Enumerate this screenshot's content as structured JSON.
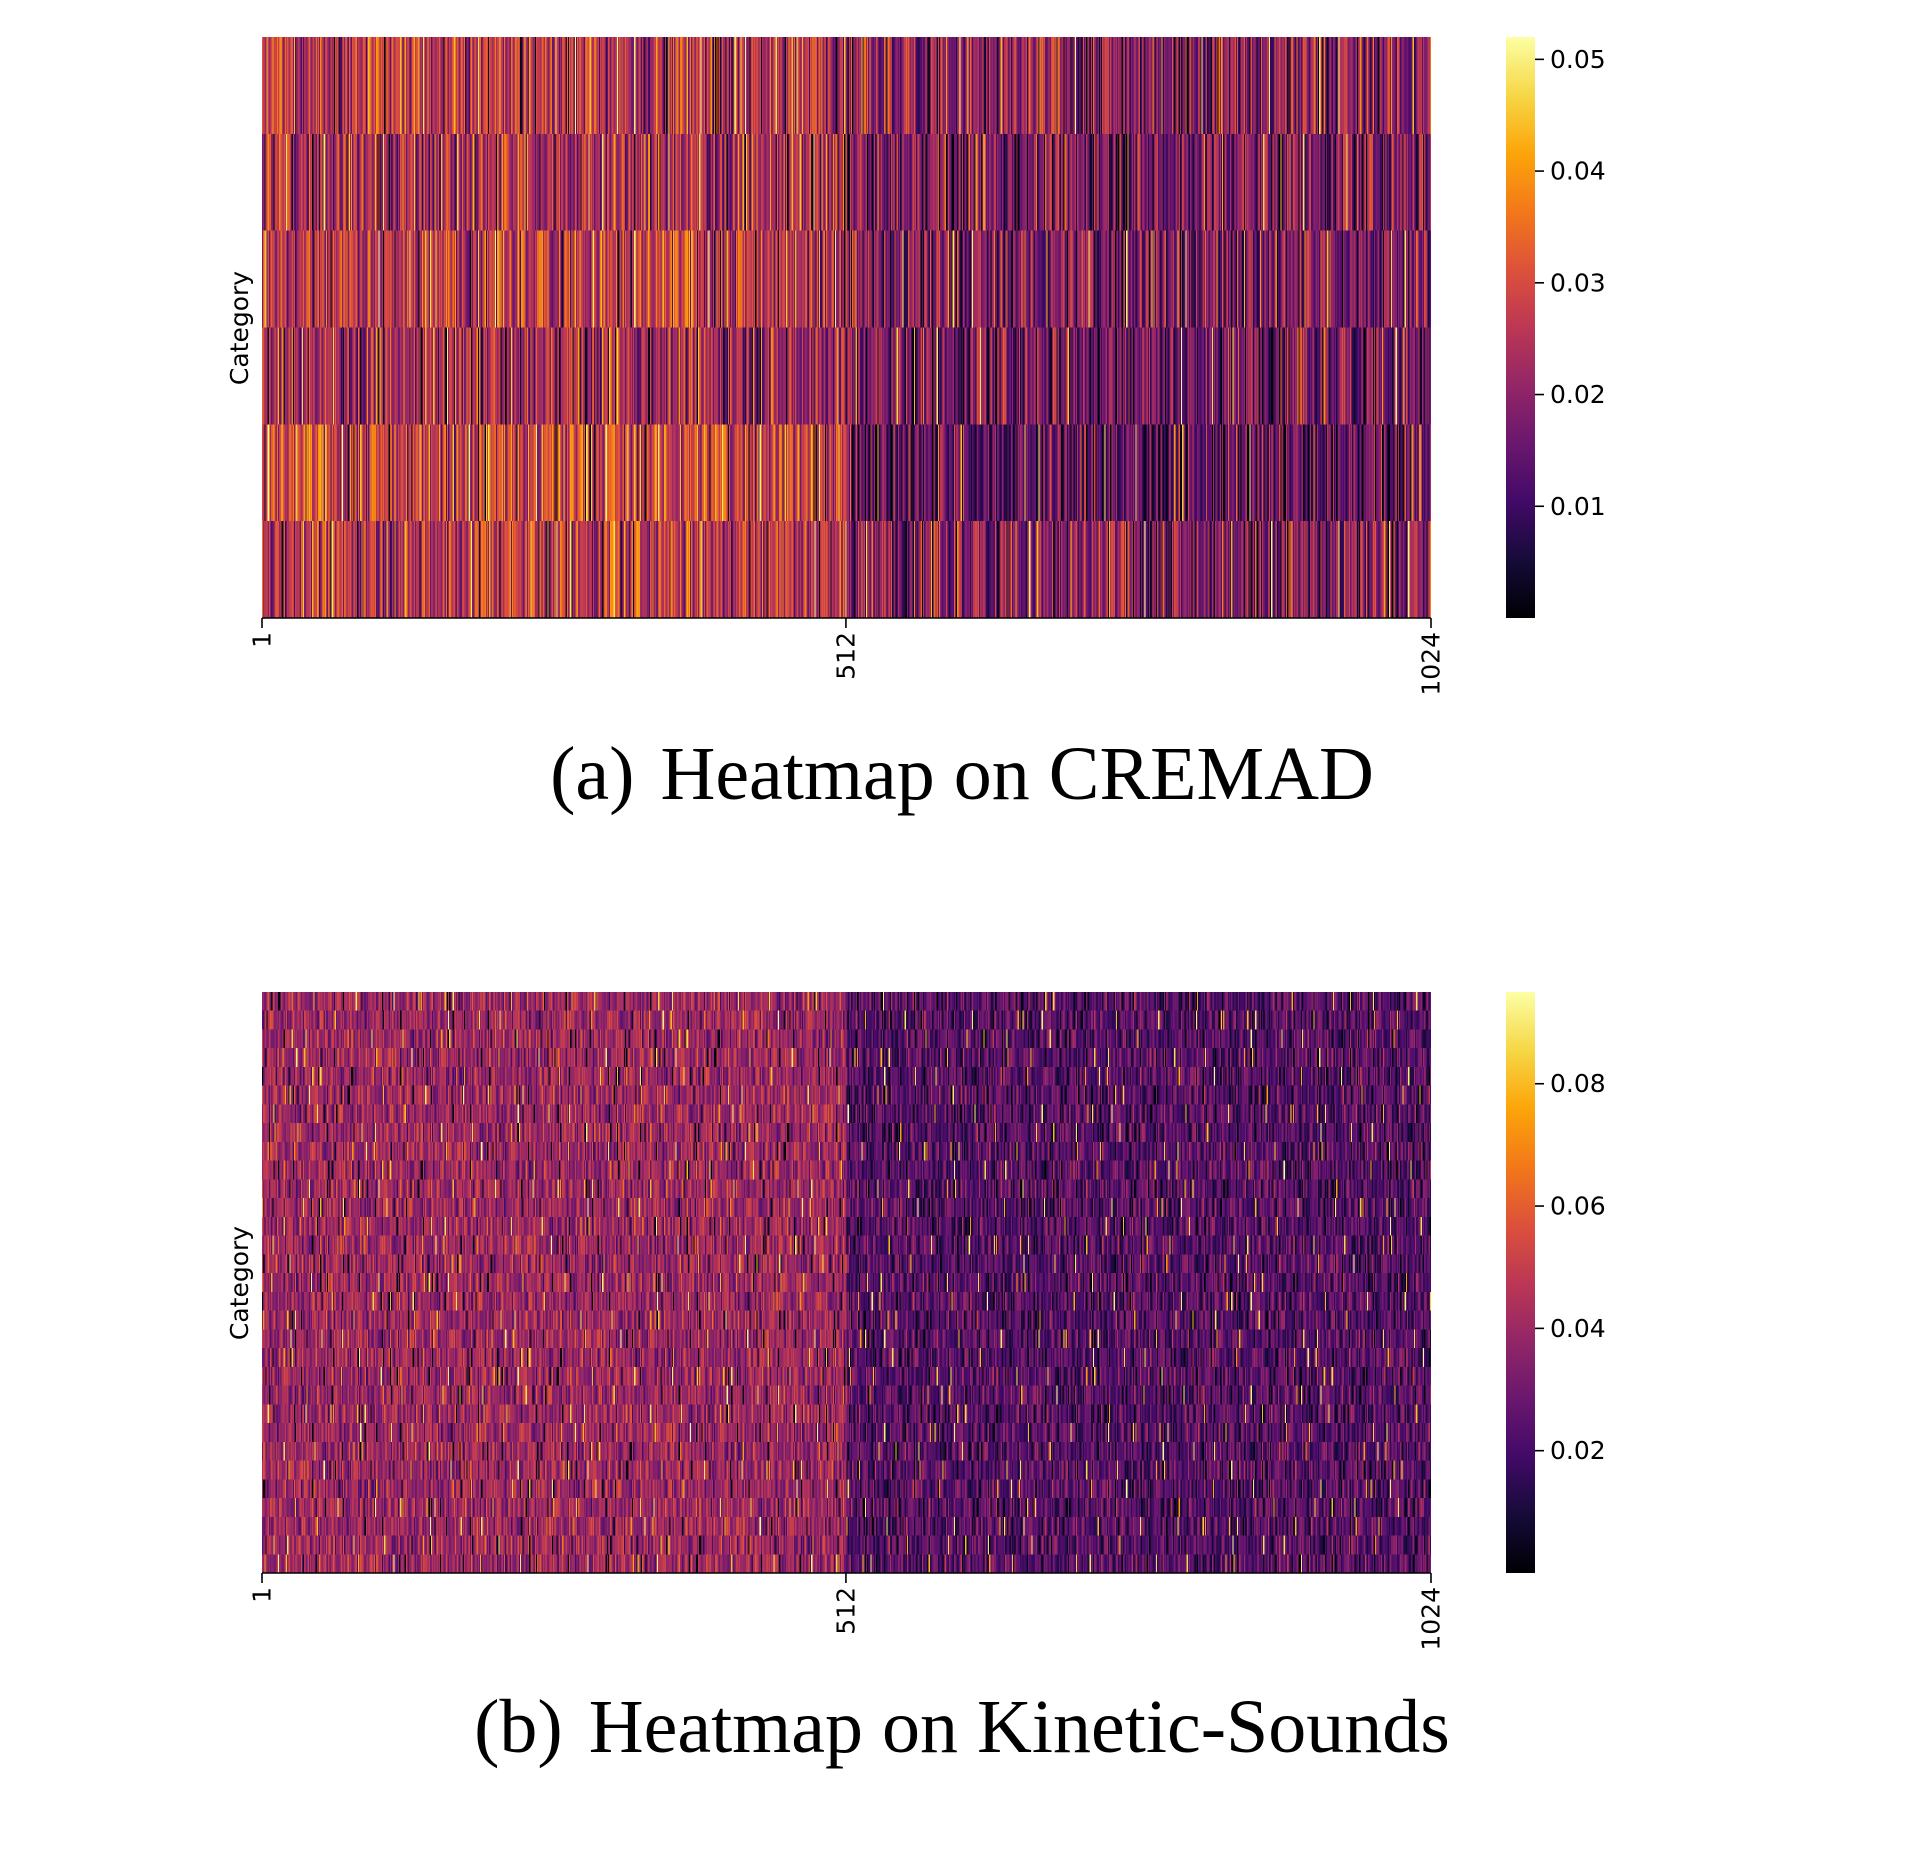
{
  "chart_data": [
    {
      "type": "heatmap",
      "caption_label": "(a)",
      "caption_title": "Heatmap on CREMAD",
      "ylabel": "Category",
      "xlabel": "",
      "x_ticks": [
        "1",
        "512",
        "1024"
      ],
      "x_range": [
        1,
        1024
      ],
      "x_tick_values": [
        1,
        512,
        1024
      ],
      "rows": 6,
      "columns": 1024,
      "colormap": "inferno",
      "colorbar_ticks": [
        "0.01",
        "0.02",
        "0.03",
        "0.04",
        "0.05"
      ],
      "colorbar_tick_values": [
        0.01,
        0.02,
        0.03,
        0.04,
        0.05
      ],
      "value_range": [
        0.0,
        0.052
      ],
      "row_mean_first_half": [
        0.026,
        0.024,
        0.027,
        0.023,
        0.029,
        0.027
      ],
      "row_mean_second_half": [
        0.02,
        0.018,
        0.018,
        0.017,
        0.014,
        0.019
      ],
      "spread": 0.012,
      "grid": false
    },
    {
      "type": "heatmap",
      "caption_label": "(b)",
      "caption_title": "Heatmap on Kinetic-Sounds",
      "ylabel": "Category",
      "xlabel": "",
      "x_ticks": [
        "1",
        "512",
        "1024"
      ],
      "x_range": [
        1,
        1024
      ],
      "x_tick_values": [
        1,
        512,
        1024
      ],
      "rows": 31,
      "columns": 1024,
      "colormap": "inferno",
      "colorbar_ticks": [
        "0.02",
        "0.04",
        "0.06",
        "0.08"
      ],
      "colorbar_tick_values": [
        0.02,
        0.04,
        0.06,
        0.08
      ],
      "value_range": [
        0.0,
        0.095
      ],
      "mean_first_half": 0.04,
      "mean_second_half": 0.024,
      "spread": 0.014,
      "grid": false
    }
  ]
}
